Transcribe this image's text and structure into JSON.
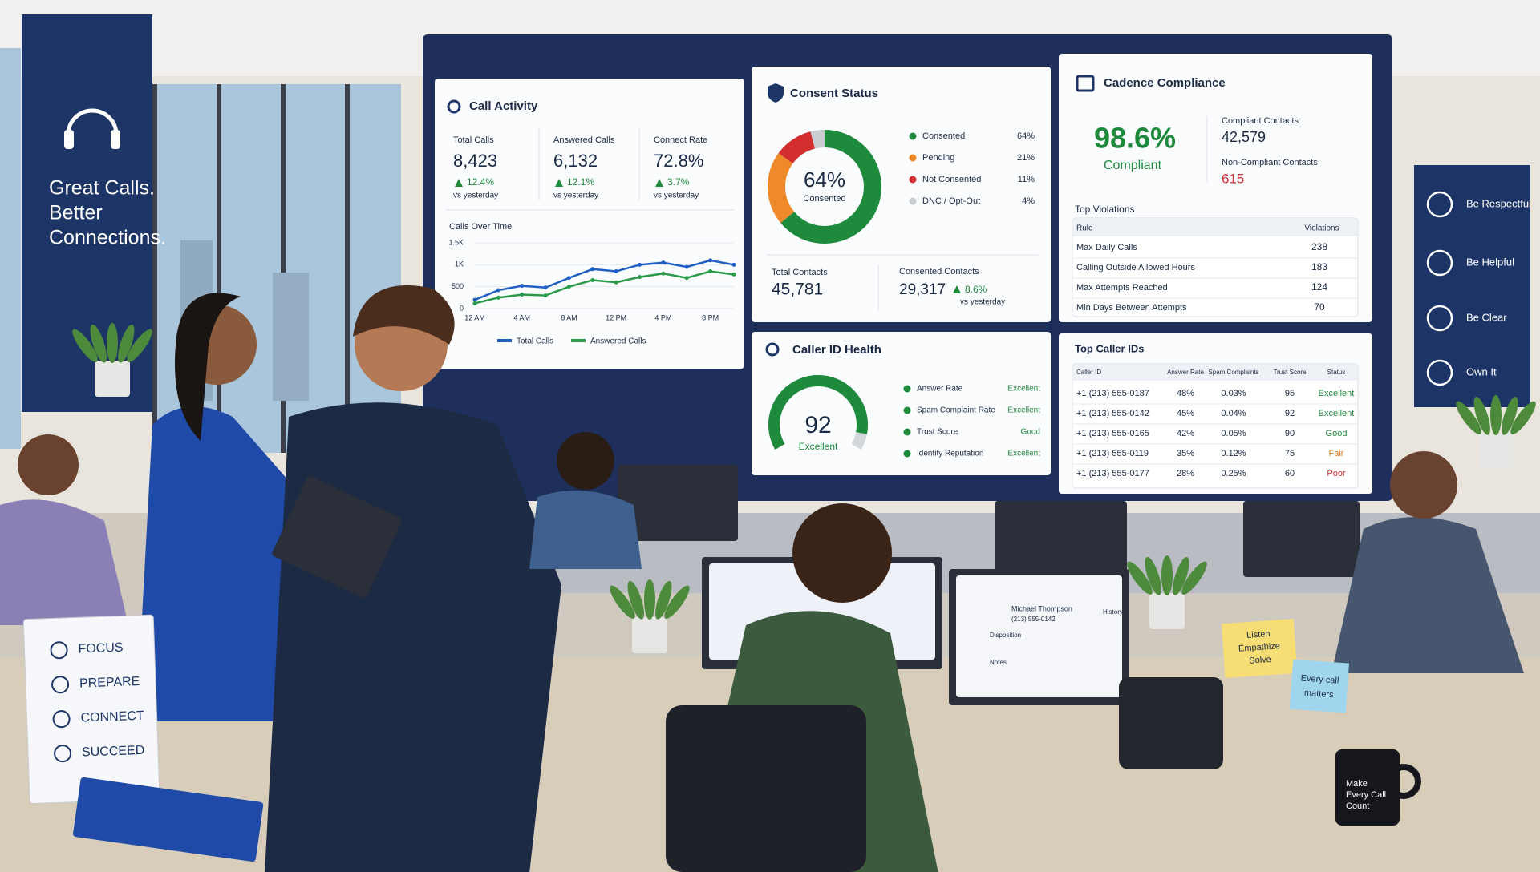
{
  "wall_banner": {
    "lines": [
      "Great Calls.",
      "Better",
      "Connections."
    ]
  },
  "dashboard": {
    "call_activity": {
      "title": "Call Activity",
      "stats": [
        {
          "label": "Total Calls",
          "value": "8,423",
          "change": "12.4%",
          "note": "vs yesterday"
        },
        {
          "label": "Answered Calls",
          "value": "6,132",
          "change": "12.1%",
          "note": "vs yesterday"
        },
        {
          "label": "Connect Rate",
          "value": "72.8%",
          "change": "3.7%",
          "note": "vs yesterday"
        }
      ],
      "chart": {
        "title": "Calls Over Time",
        "categories": [
          "12 AM",
          null,
          "4 AM",
          null,
          "8 AM",
          null,
          "12 PM",
          null,
          "4 PM",
          null,
          "8 PM",
          null
        ],
        "ylim": [
          0,
          1500
        ],
        "yticks": [
          {
            "value": 0,
            "label": "0"
          },
          {
            "value": 500,
            "label": "500"
          },
          {
            "value": 1000,
            "label": "1K"
          },
          {
            "value": 1500,
            "label": "1.5K"
          }
        ],
        "series": [
          {
            "name": "Total Calls",
            "color": "#1f5fc4",
            "values": [
              200,
              420,
              520,
              480,
              700,
              900,
              850,
              1000,
              1050,
              950,
              1100,
              1000
            ]
          },
          {
            "name": "Answered Calls",
            "color": "#2a9a48",
            "values": [
              120,
              250,
              320,
              300,
              500,
              650,
              600,
              720,
              800,
              700,
              850,
              780
            ]
          }
        ]
      }
    },
    "consent_status": {
      "title": "Consent Status",
      "center_value": "64%",
      "center_label": "Consented",
      "segments": [
        {
          "name": "Consented",
          "color": "#1e8a3c",
          "value": 64,
          "label": "64%"
        },
        {
          "name": "Pending",
          "color": "#ef8a2a",
          "value": 21,
          "label": "21%"
        },
        {
          "name": "Not Consented",
          "color": "#d32f2f",
          "value": 11,
          "label": "11%"
        },
        {
          "name": "DNC / Opt-Out",
          "color": "#c9ccd1",
          "value": 4,
          "label": "4%"
        }
      ],
      "total_contacts": {
        "label": "Total Contacts",
        "value": "45,781"
      },
      "consented_contacts": {
        "label": "Consented Contacts",
        "value": "29,317",
        "change": "8.6%",
        "note": "vs yesterday"
      }
    },
    "cadence_compliance": {
      "title": "Cadence Compliance",
      "rate": "98.6%",
      "rate_label": "Compliant",
      "compliant": {
        "label": "Compliant Contacts",
        "value": "42,579"
      },
      "non_compliant": {
        "label": "Non-Compliant Contacts",
        "value": "615"
      },
      "violations_title": "Top Violations",
      "columns": [
        "Rule",
        "Violations"
      ],
      "rows": [
        [
          "Max Daily Calls",
          "238"
        ],
        [
          "Calling Outside Allowed Hours",
          "183"
        ],
        [
          "Max Attempts Reached",
          "124"
        ],
        [
          "Min Days Between Attempts",
          "70"
        ]
      ]
    },
    "caller_id_health": {
      "title": "Caller ID Health",
      "score": 92,
      "score_label": "Excellent",
      "items": [
        [
          "Answer Rate",
          "Excellent"
        ],
        [
          "Spam Complaint Rate",
          "Excellent"
        ],
        [
          "Trust Score",
          "Good"
        ],
        [
          "Identity Reputation",
          "Excellent"
        ]
      ]
    },
    "top_caller_ids": {
      "title": "Top Caller IDs",
      "columns": [
        "Caller ID",
        "Answer Rate",
        "Spam Complaints",
        "Trust Score",
        "Status"
      ],
      "rows": [
        [
          "+1 (213) 555-0187",
          "48%",
          "0.03%",
          "95",
          "Excellent"
        ],
        [
          "+1 (213) 555-0142",
          "45%",
          "0.04%",
          "92",
          "Excellent"
        ],
        [
          "+1 (213) 555-0165",
          "42%",
          "0.05%",
          "90",
          "Good"
        ],
        [
          "+1 (213) 555-0119",
          "35%",
          "0.12%",
          "75",
          "Fair"
        ],
        [
          "+1 (213) 555-0177",
          "28%",
          "0.25%",
          "60",
          "Poor"
        ]
      ],
      "status_colors": {
        "Excellent": "#1e8a3c",
        "Good": "#1e8a3c",
        "Fair": "#e07b14",
        "Poor": "#d32f2f"
      }
    }
  },
  "values_banner": [
    "Be Respectful",
    "Be Helpful",
    "Be Clear",
    "Own It"
  ],
  "desk_sign": [
    "FOCUS",
    "PREPARE",
    "CONNECT",
    "SUCCEED"
  ],
  "sticky_notes": [
    [
      "Listen",
      "Empathize",
      "Solve"
    ],
    [
      "Every call",
      "matters"
    ]
  ],
  "mug": [
    "Make",
    "Every Call",
    "Count"
  ],
  "agent_screen": {
    "name": "Michael Thompson",
    "phone": "(213) 555-0142",
    "disposition": "Disposition",
    "notes": "Notes",
    "history": "History"
  }
}
